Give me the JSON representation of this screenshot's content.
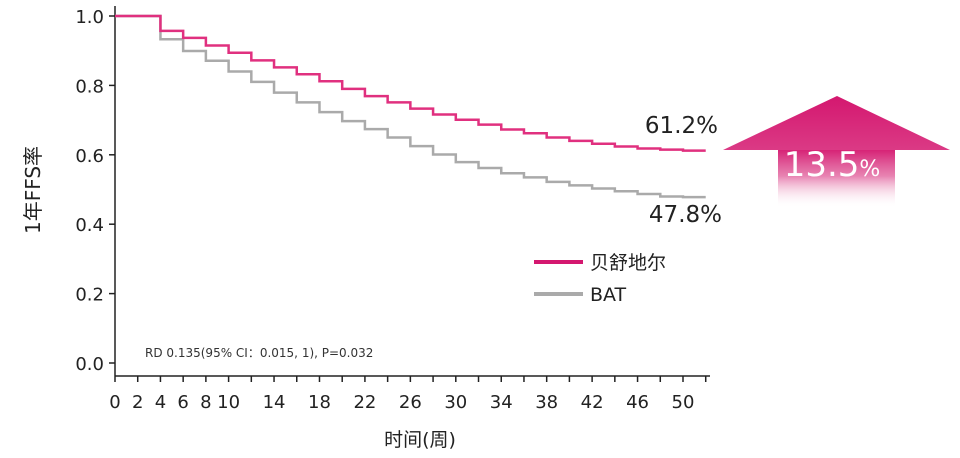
{
  "chart_data": {
    "type": "line",
    "subtype": "kaplan-meier-step",
    "xlabel": "时间(周)",
    "ylabel": "1年FFS率",
    "xlim": [
      0,
      52
    ],
    "ylim": [
      0,
      1.0
    ],
    "xticks": [
      0,
      2,
      4,
      6,
      8,
      10,
      12,
      14,
      16,
      18,
      20,
      22,
      24,
      26,
      28,
      30,
      32,
      34,
      36,
      38,
      40,
      42,
      44,
      46,
      48,
      50,
      52
    ],
    "xtick_labels": [
      "0",
      "2",
      "4",
      "6",
      "8",
      "10",
      "14",
      "18",
      "22",
      "26",
      "30",
      "34",
      "38",
      "42",
      "46",
      "50"
    ],
    "xtick_label_values": [
      0,
      2,
      4,
      6,
      8,
      10,
      14,
      18,
      22,
      26,
      30,
      34,
      38,
      42,
      46,
      50
    ],
    "yticks": [
      0.0,
      0.2,
      0.4,
      0.6,
      0.8,
      1.0
    ],
    "ytick_labels": [
      "0.0",
      "0.2",
      "0.4",
      "0.6",
      "0.8",
      "1.0"
    ],
    "grid": false,
    "legend_position": "bottom-right",
    "series": [
      {
        "name": "贝舒地尔",
        "color": "#e0307f",
        "x": [
          0,
          4,
          6,
          8,
          10,
          12,
          14,
          16,
          18,
          20,
          22,
          24,
          26,
          28,
          30,
          32,
          34,
          36,
          38,
          40,
          42,
          44,
          46,
          48,
          50,
          52
        ],
        "y": [
          1.0,
          0.957,
          0.937,
          0.915,
          0.894,
          0.872,
          0.852,
          0.832,
          0.812,
          0.79,
          0.769,
          0.751,
          0.733,
          0.716,
          0.701,
          0.687,
          0.673,
          0.662,
          0.65,
          0.64,
          0.632,
          0.624,
          0.618,
          0.615,
          0.612,
          0.612
        ]
      },
      {
        "name": "BAT",
        "color": "#aaaaaa",
        "x": [
          0,
          4,
          6,
          8,
          10,
          12,
          14,
          16,
          18,
          20,
          22,
          24,
          26,
          28,
          30,
          32,
          34,
          36,
          38,
          40,
          42,
          44,
          46,
          48,
          50,
          52
        ],
        "y": [
          1.0,
          0.933,
          0.899,
          0.871,
          0.84,
          0.81,
          0.779,
          0.751,
          0.723,
          0.697,
          0.674,
          0.65,
          0.625,
          0.601,
          0.579,
          0.562,
          0.547,
          0.535,
          0.522,
          0.512,
          0.503,
          0.495,
          0.487,
          0.48,
          0.478,
          0.478
        ]
      }
    ],
    "annotations": {
      "end_label_1": "61.2%",
      "end_label_2": "47.8%",
      "difference": "13.5",
      "difference_unit": "%",
      "stats": "RD 0.135(95% CI：0.015, 1), P=0.032"
    },
    "arrow_color": "#d4176f",
    "legend_colors": [
      "#d4176f",
      "#aaaaaa"
    ]
  }
}
